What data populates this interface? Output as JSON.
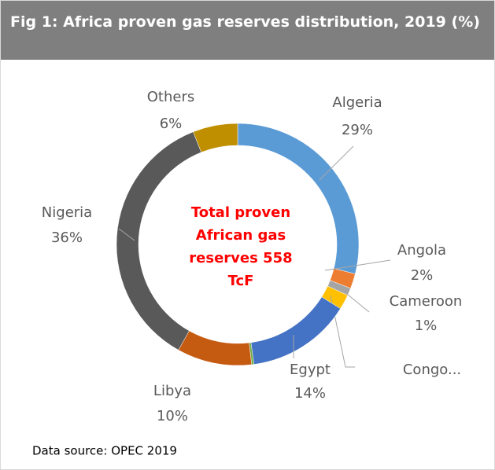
{
  "chart_data": {
    "type": "pie",
    "title": "Fig 1: Africa proven gas reserves distribution, 2019 (%)",
    "categories": [
      "Algeria",
      "Angola",
      "Cameroon",
      "Congo...",
      "Egypt",
      null,
      "Libya",
      "Nigeria",
      "Others"
    ],
    "values": [
      29,
      2,
      1,
      2,
      14,
      0.3,
      10,
      36,
      6
    ],
    "value_labels": [
      "29%",
      "2%",
      "1%",
      null,
      "14%",
      null,
      "10%",
      "36%",
      "6%"
    ],
    "colors": [
      "#5b9bd5",
      "#ed7d31",
      "#a5a5a5",
      "#ffc000",
      "#4472c4",
      "#70ad47",
      "#c55a11",
      "#595959",
      "#bf8f00"
    ],
    "donut": true,
    "center_label": [
      "Total proven",
      "African gas",
      "reserves 558",
      "TcF"
    ],
    "source": "Data source: OPEC 2019"
  }
}
